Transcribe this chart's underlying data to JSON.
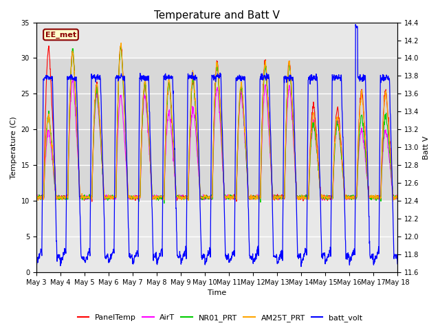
{
  "title": "Temperature and Batt V",
  "xlabel": "Time",
  "ylabel_left": "Temperature (C)",
  "ylabel_right": "Batt V",
  "annotation": "EE_met",
  "ylim_left": [
    0,
    35
  ],
  "ylim_right": [
    11.6,
    14.4
  ],
  "background_color": "#ffffff",
  "plot_bg_color": "#e8e8e8",
  "grid_color": "#ffffff",
  "shaded_band": [
    10,
    30
  ],
  "colors": {
    "PanelTemp": "#ff0000",
    "AirT": "#ff00ff",
    "NR01_PRT": "#00cc00",
    "AM25T_PRT": "#ffa500",
    "batt_volt": "#0000ff"
  },
  "legend_entries": [
    "PanelTemp",
    "AirT",
    "NR01_PRT",
    "AM25T_PRT",
    "batt_volt"
  ],
  "title_fontsize": 11,
  "axis_fontsize": 8,
  "tick_fontsize": 7,
  "legend_fontsize": 8
}
